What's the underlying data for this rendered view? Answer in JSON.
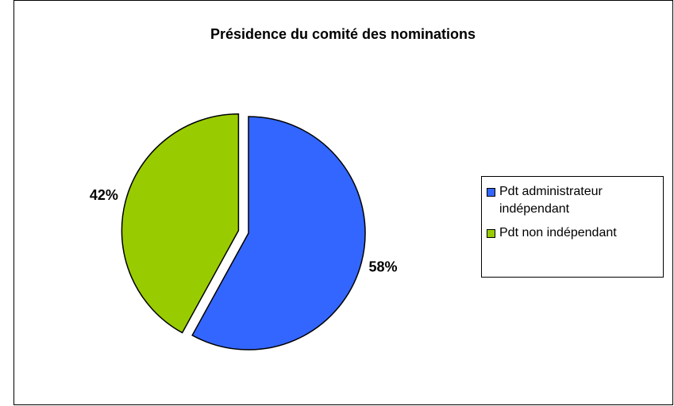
{
  "chart_data": {
    "type": "pie",
    "title": "Présidence du comité des nominations",
    "categories": [
      "Pdt administrateur indépendant",
      "Pdt non indépendant"
    ],
    "values": [
      58,
      42
    ],
    "value_labels": [
      "58%",
      "42%"
    ],
    "colors": [
      "#3366ff",
      "#99cc00"
    ],
    "legend": "right"
  }
}
